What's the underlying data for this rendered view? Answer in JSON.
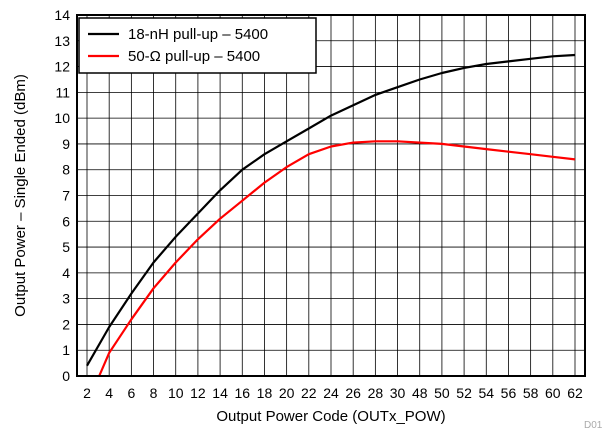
{
  "chart_data": {
    "type": "line",
    "xlabel": "Output Power Code (OUTx_POW)",
    "ylabel": "Output Power – Single Ended (dBm)",
    "figure_id": "D01",
    "categories": [
      "2",
      "4",
      "6",
      "8",
      "10",
      "12",
      "14",
      "16",
      "18",
      "20",
      "22",
      "24",
      "26",
      "28",
      "30",
      "48",
      "50",
      "52",
      "54",
      "56",
      "58",
      "60",
      "62"
    ],
    "y_ticks": [
      0,
      1,
      2,
      3,
      4,
      5,
      6,
      7,
      8,
      9,
      10,
      11,
      12,
      13,
      14
    ],
    "ylim": [
      0,
      14
    ],
    "grid": true,
    "legend_position": "top-left",
    "series": [
      {
        "name": "18-nH pull-up – 5400",
        "color": "#000000",
        "x": [
          0,
          1,
          2,
          3,
          4,
          5,
          6,
          7,
          8,
          9,
          10,
          11,
          12,
          13,
          14,
          15,
          16,
          17,
          18,
          19,
          20,
          21,
          22
        ],
        "values": [
          0.4,
          1.9,
          3.2,
          4.4,
          5.4,
          6.3,
          7.2,
          8.0,
          8.6,
          9.1,
          9.6,
          10.1,
          10.5,
          10.9,
          11.2,
          11.5,
          11.75,
          11.95,
          12.1,
          12.2,
          12.3,
          12.4,
          12.45
        ]
      },
      {
        "name": "50-Ω pull-up – 5400",
        "color": "#ff0000",
        "x": [
          0.55,
          1,
          2,
          3,
          4,
          5,
          6,
          7,
          8,
          9,
          10,
          11,
          12,
          13,
          14,
          15,
          16,
          17,
          18,
          19,
          20,
          21,
          22
        ],
        "values": [
          0,
          0.9,
          2.2,
          3.4,
          4.4,
          5.3,
          6.1,
          6.8,
          7.5,
          8.1,
          8.6,
          8.9,
          9.05,
          9.1,
          9.1,
          9.05,
          9.0,
          8.9,
          8.8,
          8.7,
          8.6,
          8.5,
          8.4
        ]
      }
    ]
  }
}
